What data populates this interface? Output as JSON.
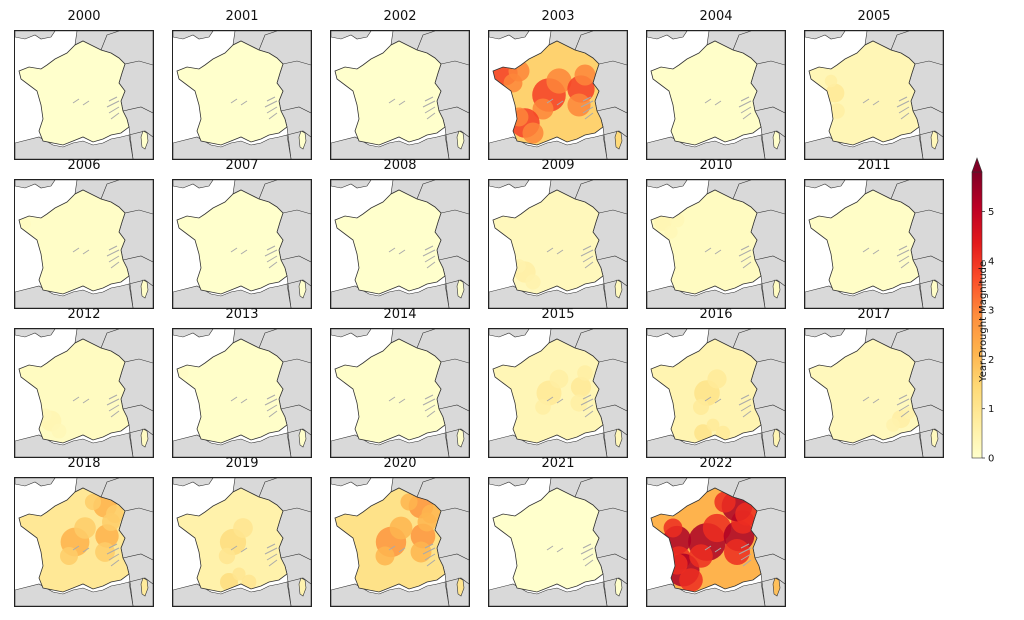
{
  "figure": {
    "panels": [
      {
        "year": "2000",
        "intensity": 0.0,
        "hotspots": []
      },
      {
        "year": "2001",
        "intensity": 0.0,
        "hotspots": []
      },
      {
        "year": "2002",
        "intensity": 0.0,
        "hotspots": []
      },
      {
        "year": "2003",
        "intensity": 3.5,
        "hotspots": [
          "northwest",
          "center",
          "east",
          "southwest"
        ]
      },
      {
        "year": "2004",
        "intensity": 0.1,
        "hotspots": []
      },
      {
        "year": "2005",
        "intensity": 0.8,
        "hotspots": [
          "west"
        ]
      },
      {
        "year": "2006",
        "intensity": 0.2,
        "hotspots": [
          "northwest-tip"
        ]
      },
      {
        "year": "2007",
        "intensity": 0.0,
        "hotspots": []
      },
      {
        "year": "2008",
        "intensity": 0.0,
        "hotspots": []
      },
      {
        "year": "2009",
        "intensity": 0.6,
        "hotspots": [
          "southwest"
        ]
      },
      {
        "year": "2010",
        "intensity": 0.4,
        "hotspots": [
          "northwest"
        ]
      },
      {
        "year": "2011",
        "intensity": 0.2,
        "hotspots": []
      },
      {
        "year": "2012",
        "intensity": 0.4,
        "hotspots": [
          "southwest"
        ]
      },
      {
        "year": "2013",
        "intensity": 0.1,
        "hotspots": [
          "northwest-tip"
        ]
      },
      {
        "year": "2014",
        "intensity": 0.1,
        "hotspots": []
      },
      {
        "year": "2015",
        "intensity": 0.8,
        "hotspots": [
          "east",
          "center"
        ]
      },
      {
        "year": "2016",
        "intensity": 1.0,
        "hotspots": [
          "south",
          "center"
        ]
      },
      {
        "year": "2017",
        "intensity": 0.6,
        "hotspots": [
          "southeast"
        ]
      },
      {
        "year": "2018",
        "intensity": 2.0,
        "hotspots": [
          "northeast",
          "east",
          "center"
        ]
      },
      {
        "year": "2019",
        "intensity": 1.2,
        "hotspots": [
          "center",
          "south"
        ]
      },
      {
        "year": "2020",
        "intensity": 2.5,
        "hotspots": [
          "northeast",
          "east",
          "center"
        ]
      },
      {
        "year": "2021",
        "intensity": 0.0,
        "hotspots": []
      },
      {
        "year": "2022",
        "intensity": 4.8,
        "hotspots": [
          "west",
          "southwest",
          "center",
          "east",
          "northeast"
        ]
      }
    ],
    "colorbar": {
      "label": "Year Drought Magnitude",
      "min": 0,
      "max": 5.8,
      "ticks": [
        "0",
        "1",
        "2",
        "3",
        "4",
        "5"
      ],
      "colors": [
        "#ffffcc",
        "#ffeda0",
        "#fed976",
        "#feb24c",
        "#fd8d3c",
        "#fc4e2a",
        "#e31a1c",
        "#bd0026",
        "#800026"
      ],
      "extend": "max"
    },
    "land_color": "#d9d9d9",
    "outline_color": "#333333"
  }
}
